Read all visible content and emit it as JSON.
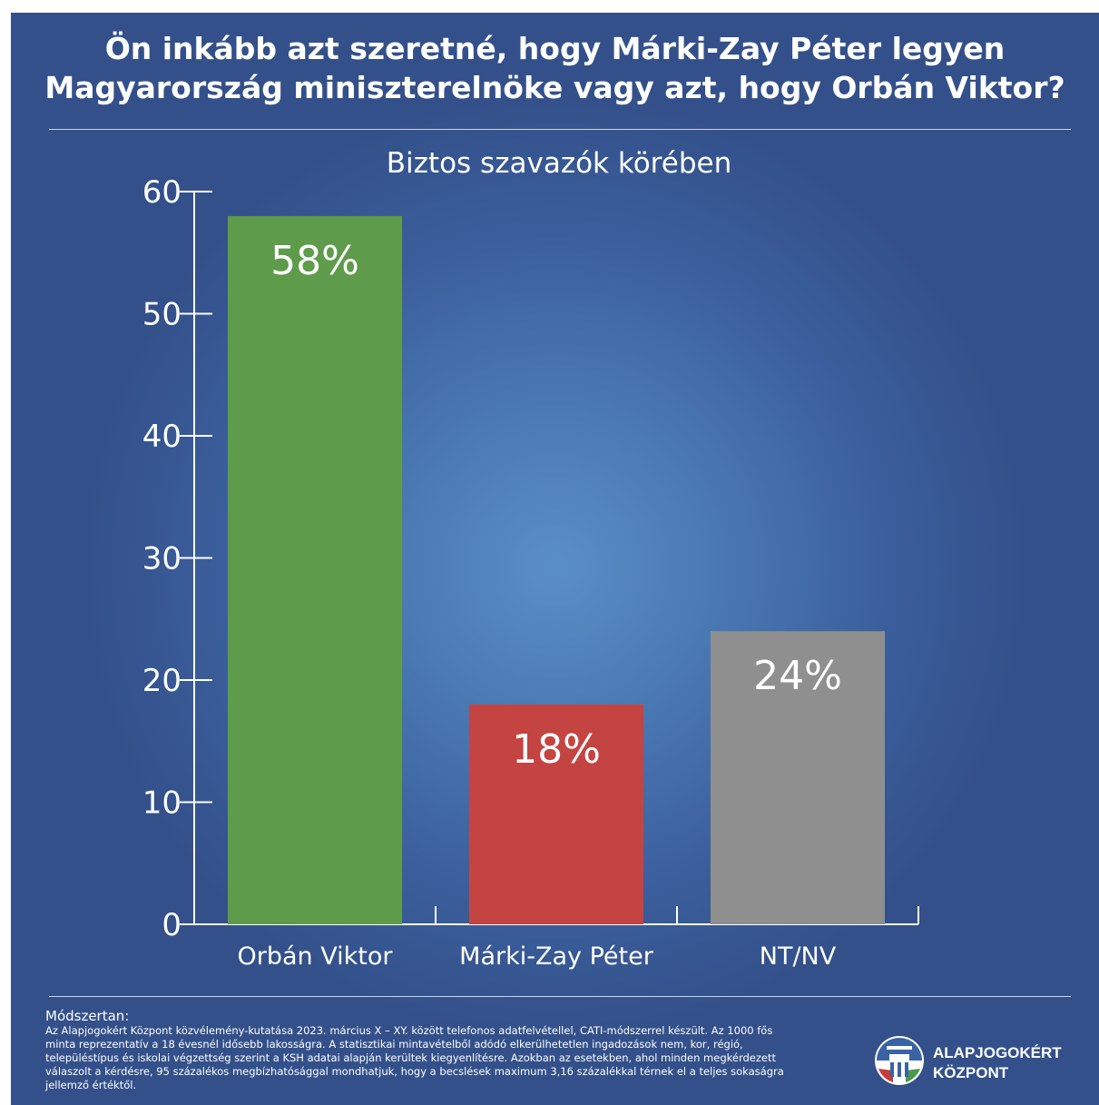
{
  "header": {
    "title_line1": "Ön inkább azt szeretné, hogy Márki-Zay Péter legyen",
    "title_line2": "Magyarország miniszterelnöke vagy azt, hogy Orbán Viktor?"
  },
  "chart_data": {
    "type": "bar",
    "subtitle": "Biztos szavazók körében",
    "categories": [
      "Orbán Viktor",
      "Márki-Zay Péter",
      "NT/NV"
    ],
    "values": [
      58,
      18,
      24
    ],
    "data_labels": [
      "58%",
      "18%",
      "24%"
    ],
    "colors": [
      "#5e9b4b",
      "#c44441",
      "#8f8f8f"
    ],
    "ylim": [
      0,
      60
    ],
    "yticks": [
      0,
      10,
      20,
      30,
      40,
      50,
      60
    ],
    "xlabel": "",
    "ylabel": "",
    "grid": false,
    "legend": "none"
  },
  "footer": {
    "method_title": "Módszertan:",
    "method_lines": [
      "Az Alapjogokért Központ közvélemény-kutatása 2023. március X – XY. között telefonos adatfelvétellel, CATI-módszerrel készült. Az 1000 fős",
      "minta reprezentatív a 18 évesnél idősebb lakosságra. A statisztikai mintavételből adódó elkerülhetetlen ingadozások nem, kor, régió,",
      "településtípus és iskolai végzettség szerint a KSH adatai alapján kerültek kiegyenlítésre. Azokban az esetekben, ahol minden megkérdezett",
      "válaszolt a kérdésre, 95 százalékos megbízhatósággal mondhatjuk, hogy a becslések maximum 3,16 százalékkal térnek el a teljes sokaságra",
      "jellemző értéktől."
    ]
  },
  "logo": {
    "line1": "ALAPJOGOKÉRT",
    "line2": "KÖZPONT",
    "icon": "alapjogokert-logo-icon"
  }
}
